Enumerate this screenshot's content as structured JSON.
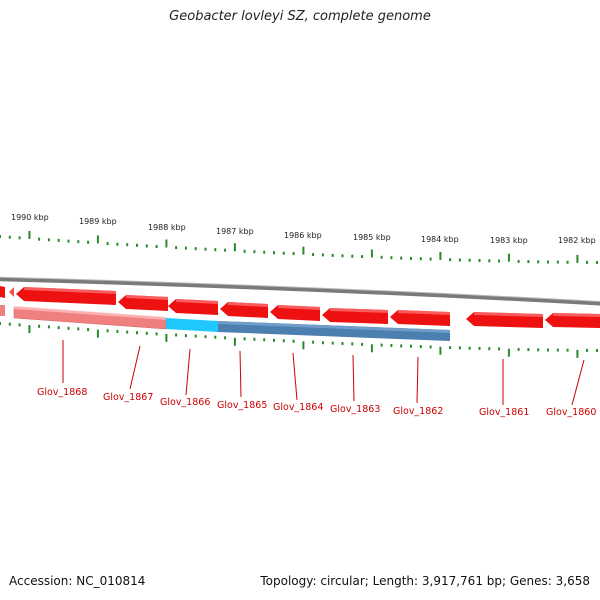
{
  "title": "Geobacter lovleyi SZ, complete genome",
  "footer": {
    "accession": "Accession: NC_010814",
    "summary": "Topology: circular; Length: 3,917,761 bp; Genes: 3,658"
  },
  "colors": {
    "gene": "#ee1111",
    "gene_light": "#f08080",
    "highlight_cyan": "#1ec8ff",
    "highlight_blue": "#4a7fb0",
    "tick": "#2a8a2a",
    "label": "#cc0000",
    "backbone": "#808080"
  },
  "ruler": [
    {
      "label": "1990 kbp"
    },
    {
      "label": "1989 kbp"
    },
    {
      "label": "1988 kbp"
    },
    {
      "label": "1987 kbp"
    },
    {
      "label": "1986 kbp"
    },
    {
      "label": "1985 kbp"
    },
    {
      "label": "1984 kbp"
    },
    {
      "label": "1983 kbp"
    },
    {
      "label": "1982 kbp"
    }
  ],
  "genes": [
    {
      "name": "Glov_1868",
      "style": "light"
    },
    {
      "name": "Glov_1867",
      "style": "light"
    },
    {
      "name": "Glov_1866",
      "style": "cyan"
    },
    {
      "name": "Glov_1865",
      "style": "blue"
    },
    {
      "name": "Glov_1864",
      "style": "blue"
    },
    {
      "name": "Glov_1863",
      "style": "blue"
    },
    {
      "name": "Glov_1862",
      "style": "blue"
    },
    {
      "name": "Glov_1861",
      "style": "red"
    },
    {
      "name": "Glov_1860",
      "style": "red"
    }
  ]
}
